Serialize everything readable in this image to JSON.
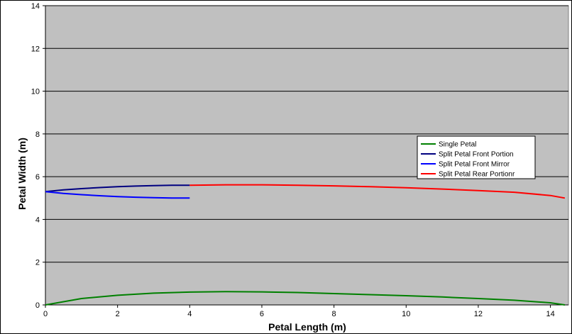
{
  "chart_data": {
    "type": "line",
    "title": "",
    "xlabel": "Petal Length (m)",
    "ylabel": "Petal Width (m)",
    "xlim": [
      0,
      14.5
    ],
    "ylim": [
      0,
      14
    ],
    "xticks": [
      "0",
      "2",
      "4",
      "6",
      "8",
      "10",
      "12",
      "14"
    ],
    "yticks": [
      "0",
      "2",
      "4",
      "6",
      "8",
      "10",
      "12",
      "14"
    ],
    "grid": "horizontal",
    "legend_position": "right",
    "plot_background": "#c0c0c0",
    "series": [
      {
        "name": "Single Petal",
        "color": "#008000",
        "x": [
          0,
          1,
          2,
          3,
          4,
          5,
          6,
          7,
          8,
          9,
          10,
          11,
          12,
          13,
          14,
          14.4
        ],
        "y": [
          0,
          0.3,
          0.45,
          0.55,
          0.6,
          0.62,
          0.61,
          0.58,
          0.53,
          0.48,
          0.43,
          0.37,
          0.3,
          0.22,
          0.1,
          0
        ]
      },
      {
        "name": "Split Petal Front Portion",
        "color": "#000080",
        "x": [
          0,
          0.5,
          1,
          1.5,
          2,
          2.5,
          3,
          3.5,
          4
        ],
        "y": [
          5.3,
          5.38,
          5.44,
          5.49,
          5.53,
          5.56,
          5.58,
          5.6,
          5.6
        ]
      },
      {
        "name": "Split Petal Front Mirror",
        "color": "#0000ff",
        "x": [
          0,
          0.5,
          1,
          1.5,
          2,
          2.5,
          3,
          3.5,
          4
        ],
        "y": [
          5.3,
          5.22,
          5.16,
          5.11,
          5.07,
          5.04,
          5.02,
          5.0,
          5.0
        ]
      },
      {
        "name": "Split Petal Rear Portionr",
        "color": "#ff0000",
        "x": [
          4,
          5,
          6,
          7,
          8,
          9,
          10,
          11,
          12,
          13,
          14,
          14.4
        ],
        "y": [
          5.6,
          5.62,
          5.62,
          5.6,
          5.57,
          5.53,
          5.48,
          5.42,
          5.35,
          5.27,
          5.12,
          5.0
        ]
      }
    ]
  }
}
